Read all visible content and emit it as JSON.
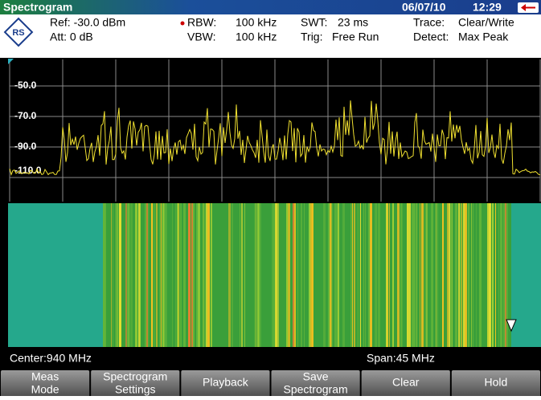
{
  "header": {
    "title": "Spectrogram",
    "date": "06/07/10",
    "time": "12:29"
  },
  "settings": {
    "ref": "Ref: -30.0 dBm",
    "att": "Att: 0 dB",
    "rbw_label": "RBW:",
    "rbw": "100 kHz",
    "vbw_label": "VBW:",
    "vbw": "100 kHz",
    "swt_label": "SWT:",
    "swt": "23 ms",
    "trig_label": "Trig:",
    "trig": "Free Run",
    "trace_label": "Trace:",
    "trace": "Clear/Write",
    "detect_label": "Detect:",
    "detect": "Max Peak"
  },
  "y_labels": [
    "-50.0",
    "-70.0",
    "-90.0",
    "-110.0"
  ],
  "status": {
    "center": "Center:940 MHz",
    "span": "Span:45 MHz"
  },
  "softkeys": [
    [
      "Meas",
      "Mode"
    ],
    [
      "Spectrogram",
      "Settings"
    ],
    [
      "Playback"
    ],
    [
      "Save",
      "Spectrogram"
    ],
    [
      "Clear"
    ],
    [
      "Hold"
    ]
  ]
}
